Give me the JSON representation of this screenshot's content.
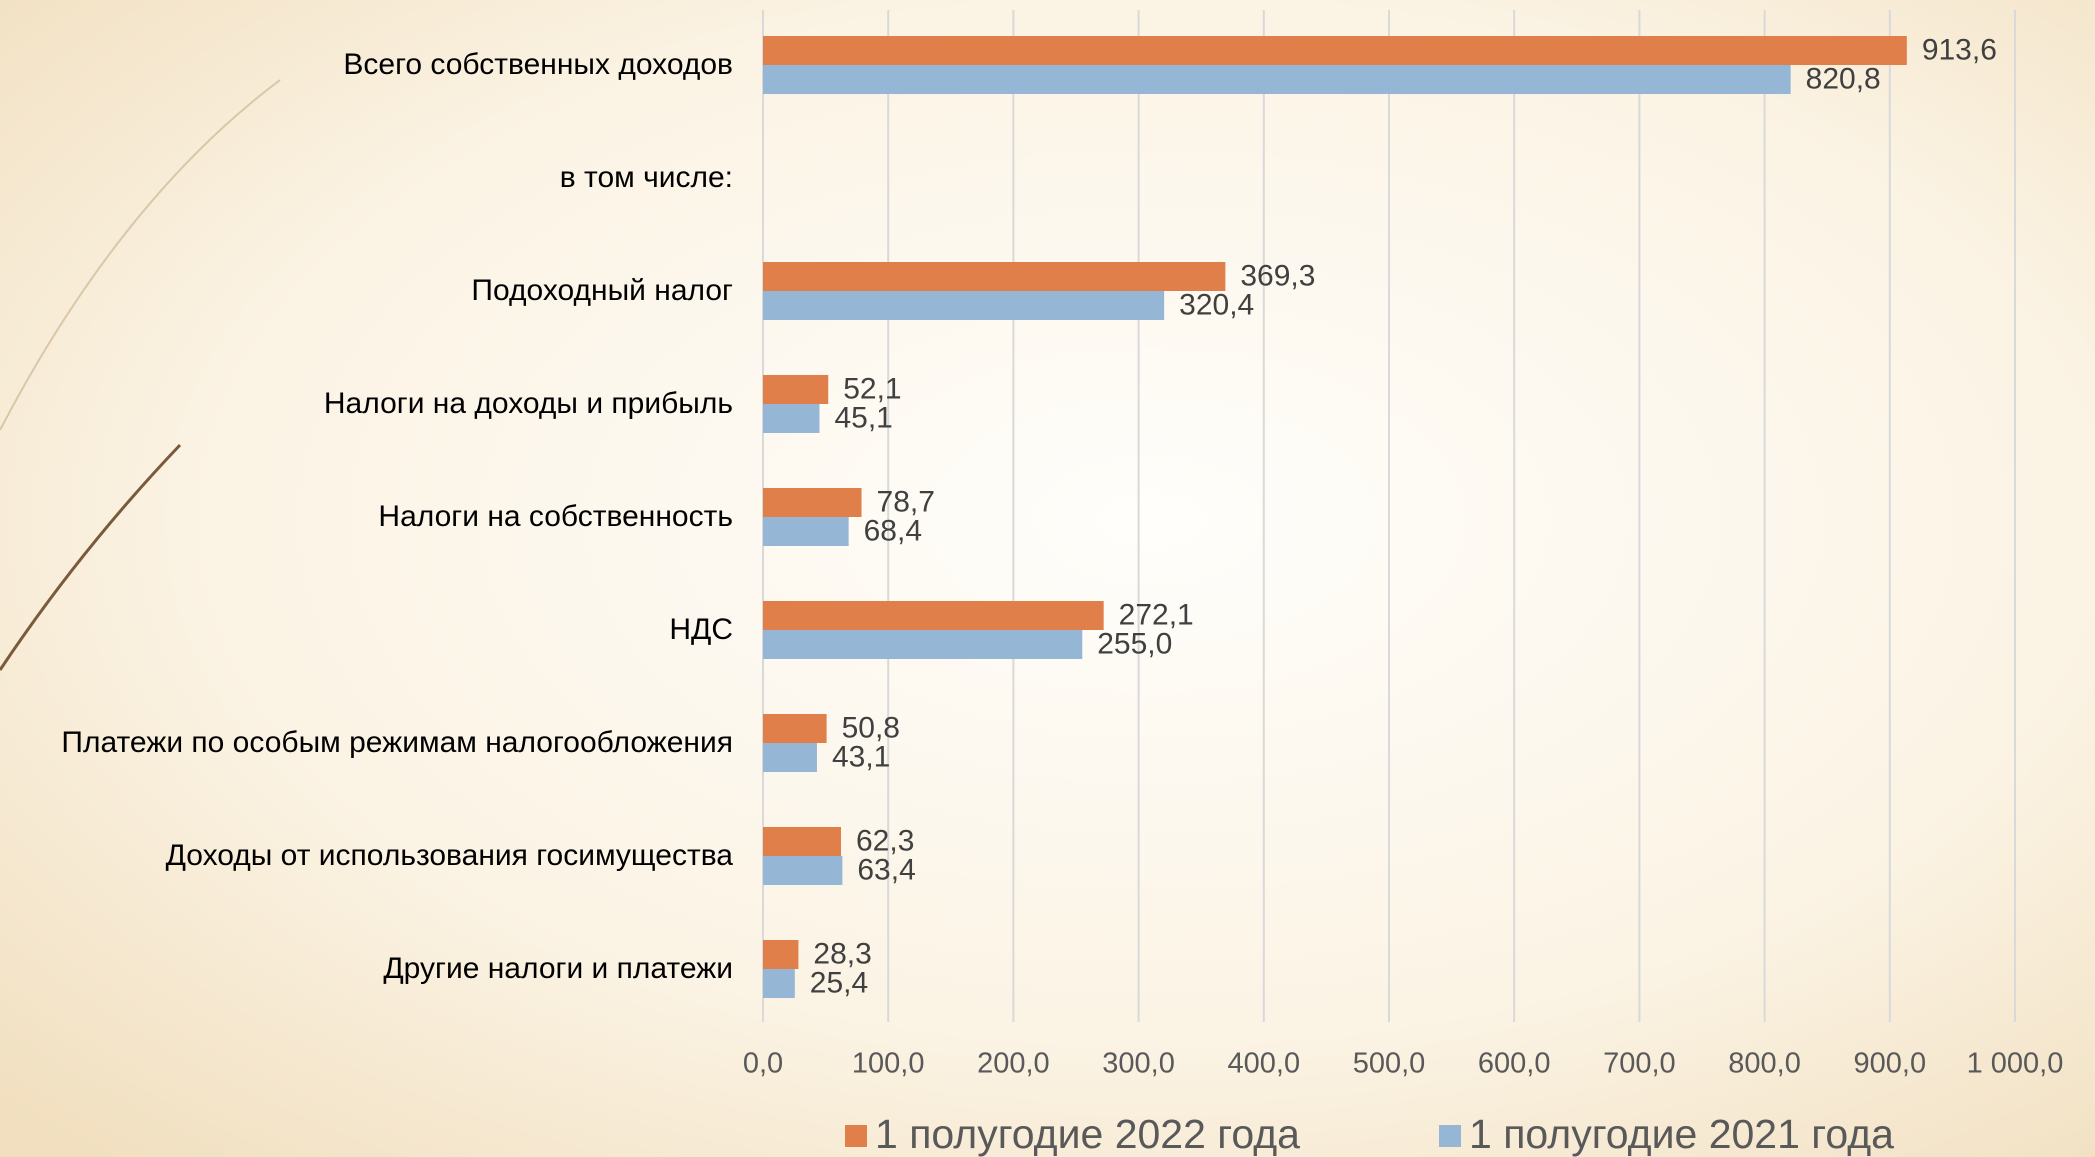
{
  "chart_data": {
    "type": "bar",
    "orientation": "horizontal",
    "categories": [
      "Всего собственных доходов",
      "в том числе:",
      "Подоходный налог",
      "Налоги на доходы и прибыль",
      "Налоги на собственность",
      "НДС",
      "Платежи по особым режимам налогообложения",
      "Доходы от использования госимущества",
      "Другие налоги и платежи"
    ],
    "series": [
      {
        "name": "1 полугодие 2022 года",
        "color": "#e07f4a",
        "values": [
          913.6,
          null,
          369.3,
          52.1,
          78.7,
          272.1,
          50.8,
          62.3,
          28.3
        ],
        "value_labels": [
          "913,6",
          null,
          "369,3",
          "52,1",
          "78,7",
          "272,1",
          "50,8",
          "62,3",
          "28,3"
        ]
      },
      {
        "name": "1 полугодие 2021 года",
        "color": "#95b6d5",
        "values": [
          820.8,
          null,
          320.4,
          45.1,
          68.4,
          255.0,
          43.1,
          63.4,
          25.4
        ],
        "value_labels": [
          "820,8",
          null,
          "320,4",
          "45,1",
          "68,4",
          "255,0",
          "43,1",
          "63,4",
          "25,4"
        ]
      }
    ],
    "xlim": [
      0,
      1000
    ],
    "xticks": [
      {
        "value": 0,
        "label": "0,0"
      },
      {
        "value": 100,
        "label": "100,0"
      },
      {
        "value": 200,
        "label": "200,0"
      },
      {
        "value": 300,
        "label": "300,0"
      },
      {
        "value": 400,
        "label": "400,0"
      },
      {
        "value": 500,
        "label": "500,0"
      },
      {
        "value": 600,
        "label": "600,0"
      },
      {
        "value": 700,
        "label": "700,0"
      },
      {
        "value": 800,
        "label": "800,0"
      },
      {
        "value": 900,
        "label": "900,0"
      },
      {
        "value": 1000,
        "label": "1 000,0"
      }
    ],
    "grid": true,
    "legend": "bottom"
  }
}
